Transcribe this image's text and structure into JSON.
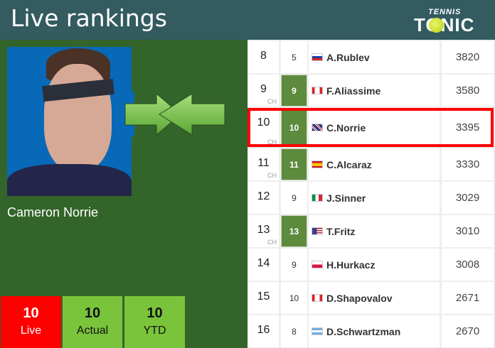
{
  "header": {
    "title": "Live rankings",
    "logo_small": "TENNIS",
    "logo_big": "TONIC"
  },
  "player": {
    "name": "Cameron Norrie",
    "movement_icon": "arrows-converging-icon"
  },
  "summary": [
    {
      "value": "10",
      "label": "Live",
      "color": "#ff0000"
    },
    {
      "value": "10",
      "label": "Actual",
      "color": "#7ac43c"
    },
    {
      "value": "10",
      "label": "YTD",
      "color": "#7ac43c"
    }
  ],
  "rankings": [
    {
      "rank": "8",
      "ch": "",
      "prev": "5",
      "up": false,
      "flag": "russia",
      "name": "A.Rublev",
      "points": "3820"
    },
    {
      "rank": "9",
      "ch": "CH",
      "prev": "9",
      "up": true,
      "flag": "canada",
      "name": "F.Aliassime",
      "points": "3580"
    },
    {
      "rank": "10",
      "ch": "CH",
      "prev": "10",
      "up": true,
      "flag": "uk",
      "name": "C.Norrie",
      "points": "3395",
      "highlight": true
    },
    {
      "rank": "11",
      "ch": "CH",
      "prev": "11",
      "up": true,
      "flag": "spain",
      "name": "C.Alcaraz",
      "points": "3330"
    },
    {
      "rank": "12",
      "ch": "",
      "prev": "9",
      "up": false,
      "flag": "italy",
      "name": "J.Sinner",
      "points": "3029"
    },
    {
      "rank": "13",
      "ch": "CH",
      "prev": "13",
      "up": true,
      "flag": "usa",
      "name": "T.Fritz",
      "points": "3010"
    },
    {
      "rank": "14",
      "ch": "",
      "prev": "9",
      "up": false,
      "flag": "poland",
      "name": "H.Hurkacz",
      "points": "3008"
    },
    {
      "rank": "15",
      "ch": "",
      "prev": "10",
      "up": false,
      "flag": "canada",
      "name": "D.Shapovalov",
      "points": "2671"
    },
    {
      "rank": "16",
      "ch": "",
      "prev": "8",
      "up": false,
      "flag": "argentina",
      "name": "D.Schwartzman",
      "points": "2670"
    }
  ],
  "colors": {
    "header": "#335b60",
    "background": "#33652a",
    "highlight": "#ff0000",
    "prev_cell": "#5e8a3e"
  }
}
